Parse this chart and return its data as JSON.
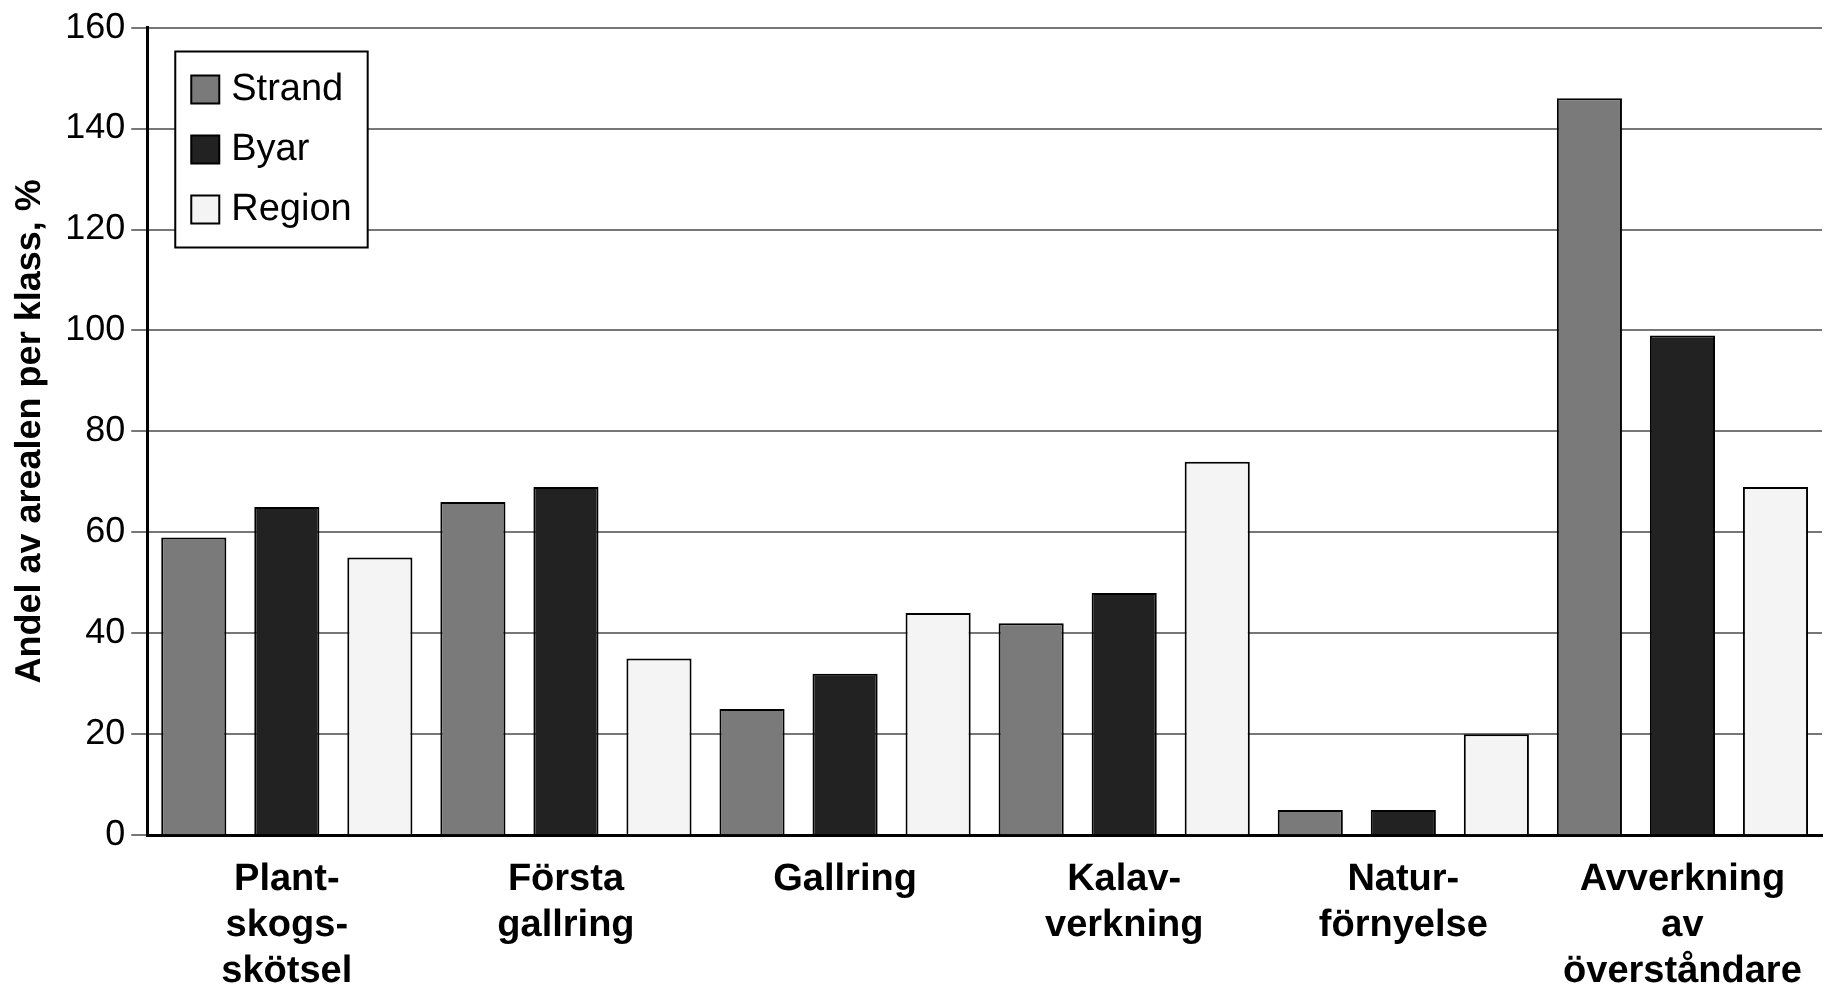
{
  "chart_data": {
    "type": "bar",
    "ylabel": "Andel av arealen per klass, %",
    "categories": [
      "Plant-\nskogs-\nskötsel",
      "Första\ngallring",
      "Gallring",
      "Kalav-\nverkning",
      "Natur-\nförnyelse",
      "Avverkning\nav\növerståndare"
    ],
    "series": [
      {
        "name": "Strand",
        "color": "#7a7a7a",
        "values": [
          59,
          66,
          25,
          42,
          5,
          146
        ]
      },
      {
        "name": "Byar",
        "color": "#222222",
        "values": [
          65,
          69,
          32,
          48,
          5,
          99
        ]
      },
      {
        "name": "Region",
        "color": "#f4f4f4",
        "values": [
          55,
          35,
          44,
          74,
          20,
          69
        ]
      }
    ],
    "ylim": [
      0,
      160
    ],
    "yticks": [
      0,
      20,
      40,
      60,
      80,
      100,
      120,
      140,
      160
    ],
    "grid": "y",
    "legend": "top left"
  }
}
